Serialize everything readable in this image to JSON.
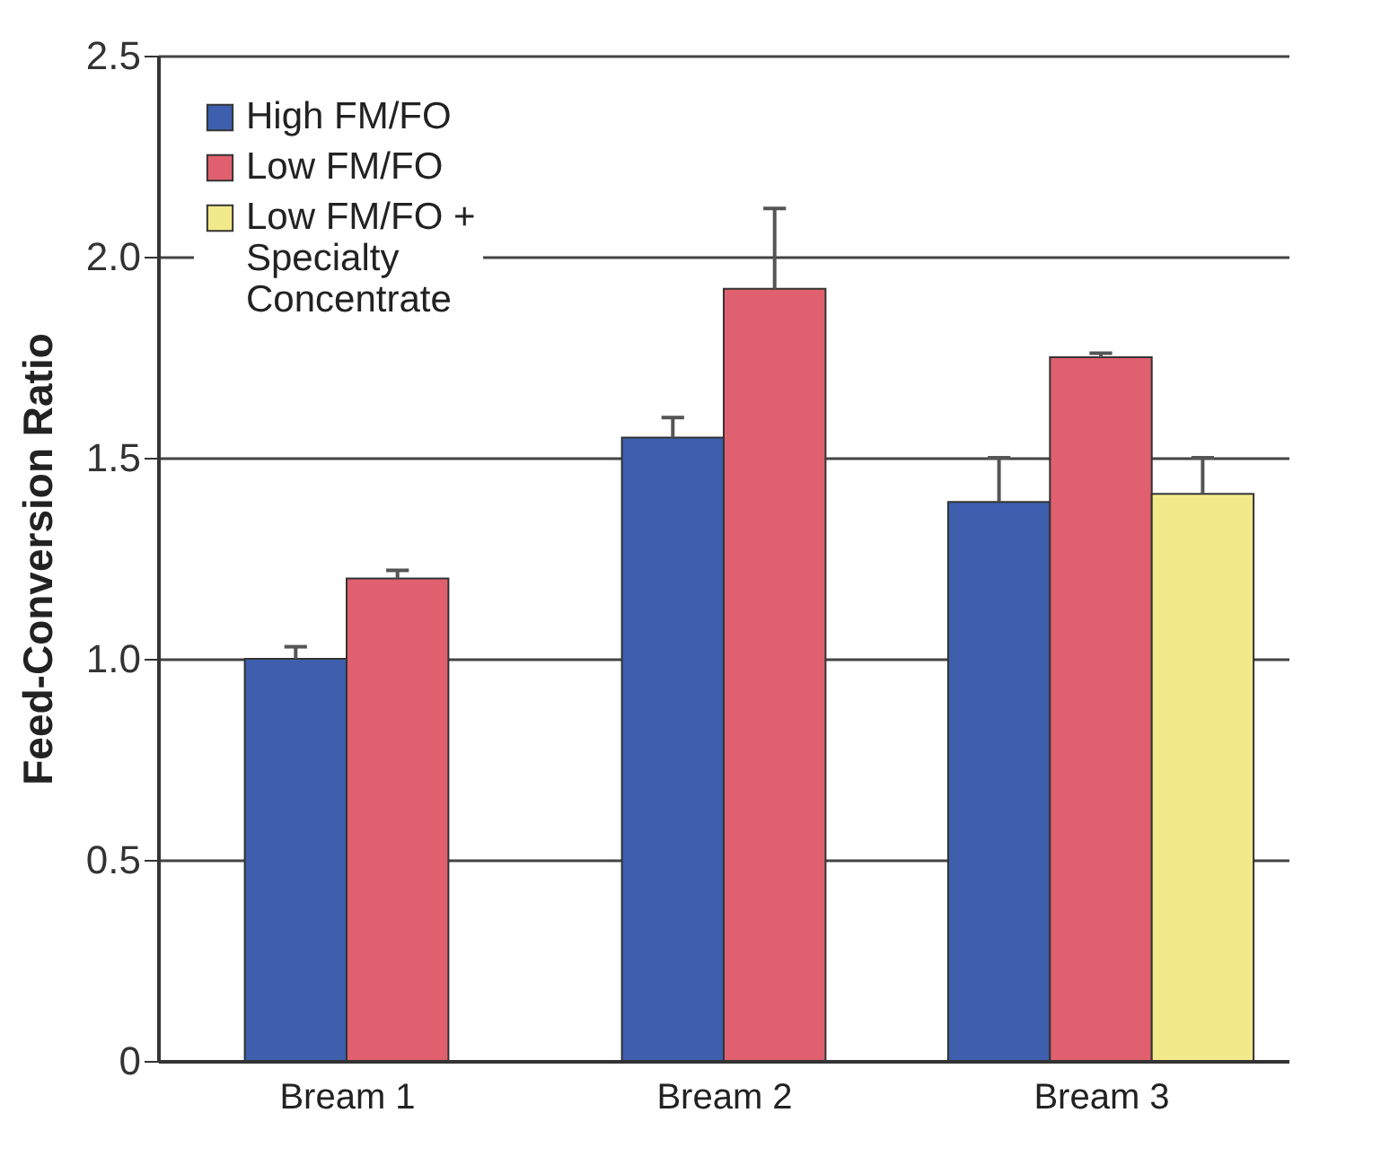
{
  "chart_data": {
    "type": "bar",
    "ylabel": "Feed-Conversion Ratio",
    "categories": [
      "Bream 1",
      "Bream 2",
      "Bream 3"
    ],
    "series": [
      {
        "name": "High FM/FO",
        "color": "#3d5fae",
        "values": [
          1.0,
          1.55,
          1.39
        ],
        "errors": [
          [
            1.0,
            1.03
          ],
          [
            1.55,
            1.6
          ],
          [
            1.39,
            1.5
          ]
        ]
      },
      {
        "name": "Low FM/FO",
        "color": "#e0606f",
        "values": [
          1.2,
          1.92,
          1.75
        ],
        "errors": [
          [
            1.2,
            1.22
          ],
          [
            1.92,
            2.12
          ],
          [
            1.75,
            1.76
          ]
        ]
      },
      {
        "name": "Low FM/FO + Specialty Concentrate",
        "color": "#f2ea8a",
        "values": [
          null,
          null,
          1.41
        ],
        "errors": [
          null,
          null,
          [
            1.41,
            1.5
          ]
        ]
      }
    ],
    "ylim": [
      0,
      2.5
    ],
    "yticks": [
      0,
      {
        "value": 0.5,
        "label": "0.5"
      },
      {
        "value": 1,
        "label": "1.0"
      },
      {
        "value": 1.5,
        "label": "1.5"
      },
      {
        "value": 2,
        "label": "2.0"
      },
      {
        "value": 2.5,
        "label": "2.5"
      }
    ],
    "grid": "y",
    "legend": "top left"
  }
}
